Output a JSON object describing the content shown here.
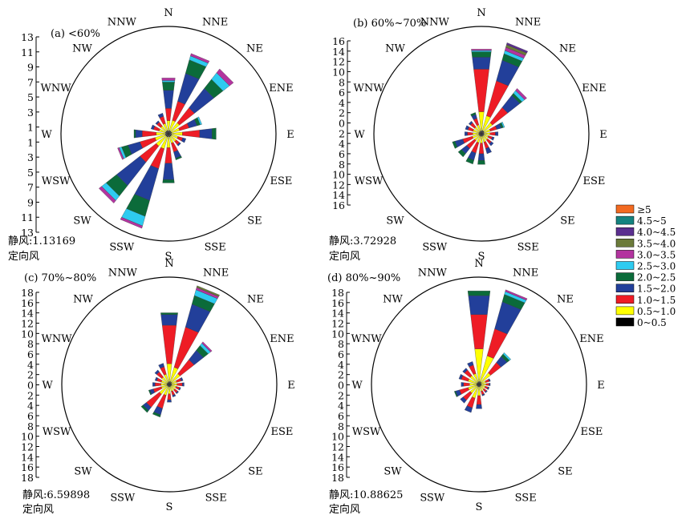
{
  "colors": {
    "c0": "#000000",
    "c1": "#ffff00",
    "c2": "#ee1c25",
    "c3": "#223f9a",
    "c4": "#0b6b3a",
    "c5": "#2ecbf0",
    "c6": "#b3349f",
    "c7": "#6b7a3a",
    "c8": "#5b2f8f",
    "c9": "#14837f",
    "c10": "#f26a21"
  },
  "legend": [
    "≥5",
    "4.5~5",
    "4.0~4.5",
    "3.5~4.0",
    "3.0~3.5",
    "2.5~3.0",
    "2.0~2.5",
    "1.5~2.0",
    "1.0~1.5",
    "0.5~1.0",
    "0~0.5"
  ],
  "legend_colors": [
    "c10",
    "c9",
    "c8",
    "c7",
    "c6",
    "c5",
    "c4",
    "c3",
    "c2",
    "c1",
    "c0"
  ],
  "chart_data": [
    {
      "type": "wind_rose",
      "title": "(a) <60%",
      "directions": [
        "N",
        "NNE",
        "NE",
        "ENE",
        "E",
        "ESE",
        "SE",
        "SSE",
        "S",
        "SSW",
        "SW",
        "WSW",
        "W",
        "WNW",
        "NW",
        "NNW"
      ],
      "radial_ticks": [
        13,
        11,
        9,
        7,
        5,
        3,
        1,
        1,
        3,
        5,
        7,
        9,
        11,
        13
      ],
      "rmax": 13,
      "calm": "静风:1.13169",
      "note": "定向风",
      "speed_bins": [
        "0~0.5",
        "0.5~1.0",
        "1.0~1.5",
        "1.5~2.0",
        "2.0~2.5",
        "2.5~3.0",
        "3.0~3.5",
        "3.5~4.0",
        "4.0~4.5",
        "4.5~5",
        "≥5"
      ],
      "sectors": [
        [
          0.4,
          1.2,
          1.5,
          2.2,
          1.0,
          0.2,
          0.3,
          0,
          0,
          0,
          0
        ],
        [
          0.4,
          1.3,
          2.4,
          3.5,
          1.7,
          0.5,
          0.3,
          0,
          0,
          0,
          0
        ],
        [
          0.4,
          1.3,
          2.3,
          3.0,
          1.4,
          1.0,
          0.6,
          0,
          0,
          0,
          0
        ],
        [
          0.4,
          1.0,
          1.2,
          1.0,
          0.4,
          0.2,
          0,
          0,
          0,
          0,
          0
        ],
        [
          0.4,
          1.3,
          2.1,
          1.5,
          0.5,
          0,
          0,
          0,
          0,
          0,
          0
        ],
        [
          0.4,
          0.8,
          0.6,
          0.4,
          0,
          0,
          0,
          0,
          0,
          0,
          0
        ],
        [
          0.4,
          0.8,
          0.5,
          0.2,
          0,
          0,
          0,
          0,
          0,
          0,
          0
        ],
        [
          0.4,
          0.8,
          1.1,
          0.8,
          0.2,
          0,
          0,
          0,
          0,
          0,
          0
        ],
        [
          0.4,
          1.3,
          1.9,
          2.0,
          0.4,
          0,
          0,
          0,
          0,
          0,
          0
        ],
        [
          0.4,
          1.5,
          2.5,
          4.0,
          2.0,
          1.2,
          0.3,
          0,
          0,
          0,
          0
        ],
        [
          0.4,
          1.5,
          2.5,
          3.6,
          1.6,
          0.7,
          0.4,
          0,
          0,
          0,
          0
        ],
        [
          0.4,
          1.3,
          1.9,
          1.5,
          0.8,
          0.3,
          0.2,
          0,
          0,
          0,
          0
        ],
        [
          0.4,
          1.1,
          1.7,
          0.8,
          0.2,
          0,
          0,
          0,
          0,
          0,
          0
        ],
        [
          0.4,
          0.8,
          0.7,
          0.3,
          0,
          0,
          0,
          0,
          0,
          0,
          0
        ],
        [
          0.4,
          0.8,
          0.6,
          0.2,
          0,
          0,
          0,
          0,
          0,
          0,
          0
        ],
        [
          0.4,
          0.9,
          0.9,
          0.4,
          0,
          0,
          0,
          0,
          0,
          0,
          0
        ]
      ]
    },
    {
      "type": "wind_rose",
      "title": "(b) 60%~70%",
      "directions": [
        "N",
        "NNE",
        "NE",
        "ENE",
        "E",
        "ESE",
        "SE",
        "SSE",
        "S",
        "SSW",
        "SW",
        "WSW",
        "W",
        "WNW",
        "NW",
        "NNW"
      ],
      "radial_ticks": [
        16,
        14,
        12,
        10,
        8,
        6,
        4,
        2,
        0,
        2,
        4,
        6,
        8,
        10,
        12,
        14,
        16
      ],
      "rmax": 16,
      "calm": "静风:3.72928",
      "note": "定向风",
      "speed_bins": [
        "0~0.5",
        "0.5~1.0",
        "1.0~1.5",
        "1.5~2.0",
        "2.0~2.5",
        "2.5~3.0",
        "3.0~3.5",
        "3.5~4.0",
        "4.0~4.5",
        "4.5~5",
        "≥5"
      ],
      "sectors": [
        [
          0.5,
          2.8,
          6.4,
          1.8,
          0.8,
          0.2,
          0.2,
          0,
          0,
          0,
          0
        ],
        [
          0.5,
          2.3,
          5.4,
          3.2,
          1.0,
          0.5,
          0.5,
          0.4,
          0.3,
          0,
          0
        ],
        [
          0.5,
          1.6,
          2.9,
          2.3,
          0.4,
          0.5,
          0.4,
          0,
          0,
          0,
          0
        ],
        [
          0.4,
          1.0,
          1.0,
          0.7,
          0.3,
          0.2,
          0,
          0,
          0,
          0,
          0
        ],
        [
          0.4,
          0.9,
          0.8,
          0.4,
          0,
          0,
          0,
          0,
          0,
          0,
          0
        ],
        [
          0.4,
          0.7,
          0.6,
          0.3,
          0,
          0,
          0,
          0,
          0,
          0,
          0
        ],
        [
          0.4,
          0.8,
          0.7,
          0.4,
          0,
          0,
          0,
          0,
          0,
          0,
          0
        ],
        [
          0.4,
          0.9,
          1.0,
          0.8,
          0,
          0,
          0,
          0,
          0,
          0,
          0
        ],
        [
          0.4,
          1.0,
          1.6,
          1.0,
          0.6,
          0,
          0,
          0,
          0,
          0,
          0
        ],
        [
          0.4,
          1.0,
          1.6,
          1.1,
          0.6,
          0,
          0,
          0,
          0,
          0,
          0
        ],
        [
          0.4,
          0.9,
          1.5,
          1.0,
          0.6,
          0,
          0,
          0,
          0,
          0,
          0
        ],
        [
          0.4,
          1.0,
          1.5,
          1.2,
          0.4,
          0,
          0,
          0,
          0,
          0,
          0
        ],
        [
          0.4,
          0.9,
          0.8,
          0.4,
          0,
          0,
          0,
          0,
          0,
          0,
          0
        ],
        [
          0.4,
          0.9,
          0.8,
          0.4,
          0,
          0,
          0,
          0,
          0,
          0,
          0
        ],
        [
          0.4,
          0.9,
          0.8,
          0.3,
          0,
          0,
          0,
          0,
          0,
          0,
          0
        ],
        [
          0.4,
          1.0,
          1.0,
          0.6,
          0.3,
          0,
          0,
          0,
          0,
          0,
          0
        ]
      ]
    },
    {
      "type": "wind_rose",
      "title": "(c) 70%~80%",
      "directions": [
        "N",
        "NNE",
        "NE",
        "ENE",
        "E",
        "ESE",
        "SE",
        "SSE",
        "S",
        "SSW",
        "SW",
        "WSW",
        "W",
        "WNW",
        "NW",
        "NNW"
      ],
      "radial_ticks": [
        18,
        16,
        14,
        12,
        10,
        8,
        6,
        4,
        2,
        0,
        2,
        4,
        6,
        8,
        10,
        12,
        14,
        16,
        18
      ],
      "rmax": 18,
      "calm": "静风:6.59898",
      "note": "定向风",
      "speed_bins": [
        "0~0.5",
        "0.5~1.0",
        "1.0~1.5",
        "1.5~2.0",
        "2.0~2.5",
        "2.5~3.0",
        "3.0~3.5",
        "3.5~4.0",
        "4.0~4.5",
        "4.5~5",
        "≥5"
      ],
      "sectors": [
        [
          0.5,
          3.0,
          6.5,
          1.8,
          0.3,
          0,
          0,
          0,
          0,
          0,
          0
        ],
        [
          0.5,
          2.5,
          7.0,
          4.0,
          1.5,
          1.0,
          0.4,
          0.3,
          0,
          0,
          0
        ],
        [
          0.5,
          1.8,
          3.0,
          2.0,
          1.0,
          0.5,
          0.3,
          0,
          0,
          0,
          0
        ],
        [
          0.4,
          0.9,
          0.8,
          0.3,
          0,
          0,
          0,
          0,
          0,
          0,
          0
        ],
        [
          0.4,
          0.9,
          0.9,
          0.3,
          0,
          0,
          0,
          0,
          0,
          0,
          0
        ],
        [
          0.4,
          0.8,
          0.6,
          0.2,
          0,
          0,
          0,
          0,
          0,
          0,
          0
        ],
        [
          0.4,
          0.8,
          0.6,
          0.2,
          0,
          0,
          0,
          0,
          0,
          0,
          0
        ],
        [
          0.4,
          0.8,
          0.7,
          0.3,
          0,
          0,
          0,
          0,
          0,
          0,
          0
        ],
        [
          0.4,
          1.2,
          1.0,
          0.4,
          0,
          0,
          0,
          0,
          0,
          0,
          0
        ],
        [
          0.4,
          1.5,
          2.3,
          1.1,
          0.4,
          0,
          0,
          0,
          0,
          0,
          0
        ],
        [
          0.4,
          1.7,
          2.8,
          0.7,
          0.4,
          0,
          0,
          0,
          0,
          0,
          0
        ],
        [
          0.4,
          1.0,
          1.4,
          0.6,
          0.2,
          0,
          0,
          0,
          0,
          0,
          0
        ],
        [
          0.4,
          1.0,
          1.0,
          0.4,
          0,
          0,
          0,
          0,
          0,
          0,
          0
        ],
        [
          0.4,
          1.0,
          0.8,
          0.3,
          0,
          0,
          0,
          0,
          0,
          0,
          0
        ],
        [
          0.4,
          1.2,
          1.1,
          0.4,
          0,
          0,
          0,
          0,
          0,
          0,
          0
        ],
        [
          0.4,
          1.4,
          1.3,
          0.6,
          0,
          0,
          0,
          0,
          0,
          0,
          0
        ]
      ]
    },
    {
      "type": "wind_rose",
      "title": "(d) 80%~90%",
      "directions": [
        "N",
        "NNE",
        "NE",
        "ENE",
        "E",
        "ESE",
        "SE",
        "SSE",
        "S",
        "SSW",
        "SW",
        "WSW",
        "W",
        "WNW",
        "NW",
        "NNW"
      ],
      "radial_ticks": [
        18,
        16,
        14,
        12,
        10,
        8,
        6,
        4,
        2,
        0,
        2,
        4,
        6,
        8,
        10,
        12,
        14,
        16,
        18
      ],
      "rmax": 18,
      "calm": "静风:10.88625",
      "note": "定向风",
      "speed_bins": [
        "0~0.5",
        "0.5~1.0",
        "1.0~1.5",
        "1.5~2.0",
        "2.0~2.5",
        "2.5~3.0",
        "3.0~3.5",
        "3.5~4.0",
        "4.0~4.5",
        "4.5~5",
        "≥5"
      ],
      "sectors": [
        [
          0.5,
          5.5,
          5.8,
          3.2,
          0.8,
          0,
          0,
          0,
          0,
          0,
          0
        ],
        [
          0.5,
          4.5,
          4.7,
          4.7,
          1.3,
          0.5,
          0.3,
          0,
          0,
          0,
          0
        ],
        [
          0.5,
          2.0,
          2.2,
          1.3,
          0.5,
          0.3,
          0,
          0,
          0,
          0,
          0
        ],
        [
          0.4,
          0.8,
          0.6,
          0.2,
          0,
          0,
          0,
          0,
          0,
          0,
          0
        ],
        [
          0.4,
          0.8,
          0.5,
          0.2,
          0,
          0,
          0,
          0,
          0,
          0,
          0
        ],
        [
          0.4,
          0.7,
          0.5,
          0.2,
          0,
          0,
          0,
          0,
          0,
          0,
          0
        ],
        [
          0.4,
          0.7,
          0.5,
          0.2,
          0,
          0,
          0,
          0,
          0,
          0,
          0
        ],
        [
          0.4,
          0.8,
          0.6,
          0.2,
          0,
          0,
          0,
          0,
          0,
          0,
          0
        ],
        [
          0.4,
          1.5,
          1.5,
          0.7,
          0,
          0,
          0,
          0,
          0,
          0,
          0
        ],
        [
          0.4,
          2.0,
          1.7,
          0.8,
          0,
          0,
          0,
          0,
          0,
          0,
          0
        ],
        [
          0.4,
          1.5,
          1.5,
          0.6,
          0,
          0,
          0,
          0,
          0,
          0,
          0
        ],
        [
          0.4,
          1.5,
          1.5,
          0.7,
          0.2,
          0,
          0,
          0,
          0,
          0,
          0
        ],
        [
          0.4,
          1.2,
          1.0,
          0.4,
          0,
          0,
          0,
          0,
          0,
          0,
          0
        ],
        [
          0.4,
          1.5,
          1.2,
          0.4,
          0,
          0,
          0,
          0,
          0,
          0,
          0
        ],
        [
          0.4,
          1.5,
          1.2,
          0.4,
          0,
          0,
          0,
          0,
          0,
          0,
          0
        ],
        [
          0.4,
          1.5,
          1.5,
          0.6,
          0,
          0,
          0,
          0,
          0,
          0,
          0
        ]
      ]
    }
  ]
}
